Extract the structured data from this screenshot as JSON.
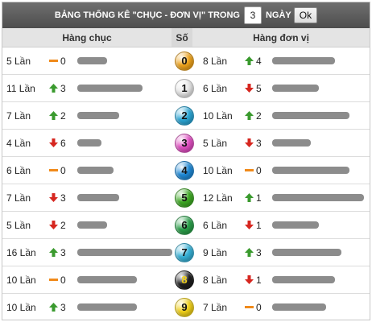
{
  "header": {
    "title": "BẢNG THỐNG KÊ \"CHỤC - ĐƠN VỊ\" TRONG",
    "days_value": "3",
    "days_label": "NGÀY",
    "ok_label": "Ok"
  },
  "columns": {
    "left": "Hàng chục",
    "mid": "Số",
    "right": "Hàng đơn vị"
  },
  "colors": {
    "up": "#3a9a2e",
    "down": "#d6261f",
    "same": "#f08a1a",
    "bar": "#8c8c8c"
  },
  "rows": [
    {
      "num": "0",
      "ball_color": "#f0a41c",
      "left": {
        "count": "5 Lần",
        "trend": "same",
        "delta": "0",
        "level": 0.31
      },
      "right": {
        "count": "8 Lần",
        "trend": "up",
        "delta": "4",
        "level": 0.66
      }
    },
    {
      "num": "1",
      "ball_color": "#e8e8e8",
      "left": {
        "count": "11 Lần",
        "trend": "up",
        "delta": "3",
        "level": 0.69
      },
      "right": {
        "count": "6 Lần",
        "trend": "down",
        "delta": "5",
        "level": 0.49
      }
    },
    {
      "num": "2",
      "ball_color": "#2aa6d6",
      "left": {
        "count": "7 Lần",
        "trend": "up",
        "delta": "2",
        "level": 0.44
      },
      "right": {
        "count": "10 Lần",
        "trend": "up",
        "delta": "2",
        "level": 0.81
      }
    },
    {
      "num": "3",
      "ball_color": "#e24fc3",
      "left": {
        "count": "4 Lần",
        "trend": "down",
        "delta": "6",
        "level": 0.25
      },
      "right": {
        "count": "5 Lần",
        "trend": "down",
        "delta": "3",
        "level": 0.41
      }
    },
    {
      "num": "4",
      "ball_color": "#1f8ad8",
      "left": {
        "count": "6 Lần",
        "trend": "same",
        "delta": "0",
        "level": 0.38
      },
      "right": {
        "count": "10 Lần",
        "trend": "same",
        "delta": "0",
        "level": 0.81
      }
    },
    {
      "num": "5",
      "ball_color": "#3eaa24",
      "left": {
        "count": "7 Lần",
        "trend": "down",
        "delta": "3",
        "level": 0.44
      },
      "right": {
        "count": "12 Lần",
        "trend": "up",
        "delta": "1",
        "level": 0.97
      }
    },
    {
      "num": "6",
      "ball_color": "#2aa04a",
      "left": {
        "count": "5 Lần",
        "trend": "down",
        "delta": "2",
        "level": 0.31
      },
      "right": {
        "count": "6 Lần",
        "trend": "down",
        "delta": "1",
        "level": 0.49
      }
    },
    {
      "num": "7",
      "ball_color": "#36b2d8",
      "left": {
        "count": "16 Lần",
        "trend": "up",
        "delta": "3",
        "level": 1.0
      },
      "right": {
        "count": "9 Lần",
        "trend": "up",
        "delta": "3",
        "level": 0.73
      }
    },
    {
      "num": "8",
      "ball_color": "#1e1e1e",
      "left": {
        "count": "10 Lần",
        "trend": "same",
        "delta": "0",
        "level": 0.63
      },
      "right": {
        "count": "8 Lần",
        "trend": "down",
        "delta": "1",
        "level": 0.66
      }
    },
    {
      "num": "9",
      "ball_color": "#f2d21a",
      "left": {
        "count": "10 Lần",
        "trend": "up",
        "delta": "3",
        "level": 0.63
      },
      "right": {
        "count": "7 Lần",
        "trend": "same",
        "delta": "0",
        "level": 0.57
      }
    }
  ]
}
